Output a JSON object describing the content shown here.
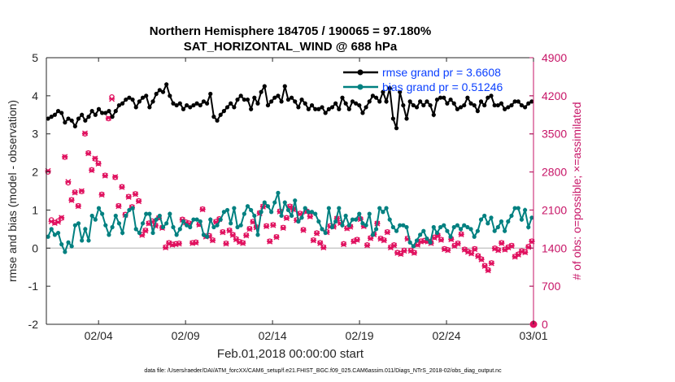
{
  "chart_data": {
    "type": "line",
    "title_line1": "Northern Hemisphere 184705 / 190065 = 97.180%",
    "title_line2": "SAT_HORIZONTAL_WIND @ 688 hPa",
    "xlabel": "Feb.01,2018 00:00:00 start",
    "ylabel_left": "rmse and bias (model - observation)",
    "ylabel_right": "# of obs: o=possible; ×=assimilated",
    "footnote": "data file: /Users/raeder/DAI/ATM_forcXX/CAM6_setup/f.e21.FHIST_BGC.f09_025.CAM6assim.011/Diags_NTrS_2018-02/obs_diag_output.nc",
    "x_range": [
      0,
      28
    ],
    "x_ticks": [
      {
        "value": 3,
        "label": "02/04"
      },
      {
        "value": 8,
        "label": "02/09"
      },
      {
        "value": 13,
        "label": "02/14"
      },
      {
        "value": 18,
        "label": "02/19"
      },
      {
        "value": 23,
        "label": "02/24"
      },
      {
        "value": 28,
        "label": "03/01"
      }
    ],
    "ylim_left": [
      -2,
      5
    ],
    "yticks_left": [
      "-2",
      "-1",
      "0",
      "1",
      "2",
      "3",
      "4",
      "5"
    ],
    "ylim_right": [
      0,
      4900
    ],
    "yticks_right": [
      "0",
      "700",
      "1400",
      "2100",
      "2800",
      "3500",
      "4200",
      "4900"
    ],
    "legend": {
      "location": "top-right",
      "entries": [
        "rmse grand pr = 3.6608",
        "bias grand pr = 0.51246"
      ]
    },
    "colors": {
      "rmse": "#000000",
      "bias": "#008080",
      "obs": "#e0115f",
      "right_axis": "#c71567",
      "legend_text": "#0a3fff",
      "zero_line": "#bfbfbf"
    },
    "series": [
      {
        "name": "rmse",
        "axis": "left",
        "values": [
          3.4,
          3.45,
          3.5,
          3.6,
          3.55,
          3.3,
          3.4,
          3.35,
          3.2,
          3.4,
          3.5,
          3.35,
          3.45,
          3.6,
          3.5,
          3.65,
          3.55,
          3.55,
          3.6,
          3.45,
          3.6,
          3.75,
          3.8,
          3.9,
          3.95,
          3.9,
          3.7,
          3.85,
          3.95,
          4.0,
          3.7,
          3.85,
          4.05,
          4.15,
          4.1,
          4.3,
          4.0,
          3.8,
          3.75,
          3.8,
          3.65,
          3.75,
          3.7,
          3.75,
          3.8,
          3.75,
          3.85,
          3.8,
          4.05,
          3.45,
          3.35,
          3.5,
          3.6,
          3.7,
          3.8,
          3.7,
          3.9,
          4.0,
          3.9,
          3.9,
          3.65,
          3.95,
          3.8,
          4.1,
          4.25,
          3.75,
          3.85,
          3.95,
          4.0,
          3.85,
          4.25,
          3.9,
          3.95,
          3.85,
          3.7,
          3.9,
          3.8,
          3.65,
          3.75,
          3.65,
          3.65,
          3.7,
          3.55,
          3.65,
          3.7,
          3.8,
          3.65,
          3.95,
          3.8,
          3.65,
          3.85,
          3.8,
          3.75,
          3.55,
          3.7,
          3.85,
          4.0,
          3.95,
          3.85,
          4.1,
          3.85,
          4.2,
          3.4,
          3.15,
          4.1,
          3.75,
          3.4,
          3.85,
          3.75,
          3.7,
          3.85,
          3.75,
          3.85,
          3.75,
          3.5,
          3.9,
          3.95,
          3.95,
          3.8,
          3.9,
          3.8,
          3.65,
          3.7,
          3.75,
          3.95,
          3.8,
          3.75,
          3.6,
          3.85,
          3.75,
          3.95,
          4.0,
          3.75,
          3.75,
          3.8,
          3.65,
          3.7,
          3.75,
          3.85,
          3.85,
          3.75,
          3.7,
          3.8,
          3.85
        ]
      },
      {
        "name": "bias",
        "axis": "left",
        "values": [
          0.3,
          0.5,
          0.35,
          0.4,
          0.1,
          -0.1,
          0.15,
          0.05,
          0.6,
          0.65,
          0.2,
          0.5,
          0.2,
          0.85,
          0.75,
          1.05,
          0.9,
          0.6,
          0.35,
          0.55,
          0.85,
          0.65,
          0.4,
          0.85,
          1.0,
          1.05,
          0.5,
          0.4,
          0.65,
          0.9,
          0.9,
          0.4,
          0.75,
          0.85,
          0.55,
          0.65,
          0.9,
          0.55,
          0.35,
          0.5,
          0.7,
          0.6,
          0.55,
          0.75,
          0.75,
          0.7,
          0.35,
          0.3,
          0.75,
          0.55,
          0.6,
          0.75,
          0.95,
          1.0,
          0.65,
          1.05,
          0.55,
          0.6,
          0.9,
          1.1,
          1.0,
          0.85,
          0.35,
          0.95,
          1.2,
          1.1,
          0.95,
          1.2,
          1.45,
          0.85,
          1.2,
          1.0,
          0.85,
          1.25,
          0.7,
          0.8,
          1.05,
          0.95,
          0.95,
          0.9,
          0.7,
          0.5,
          0.4,
          1.05,
          0.55,
          0.7,
          1.05,
          0.6,
          0.85,
          0.6,
          0.75,
          0.75,
          0.9,
          0.65,
          0.6,
          0.9,
          0.35,
          0.5,
          1.05,
          0.95,
          1.05,
          0.75,
          0.55,
          0.45,
          0.6,
          0.6,
          0.55,
          0.15,
          0.05,
          0.2,
          0.35,
          0.45,
          0.25,
          0.15,
          0.55,
          0.4,
          0.55,
          0.6,
          0.45,
          0.3,
          0.55,
          0.6,
          0.5,
          0.6,
          0.55,
          0.5,
          0.3,
          0.45,
          0.75,
          0.85,
          0.65,
          0.8,
          0.45,
          0.55,
          0.7,
          0.45,
          0.7,
          0.85,
          1.05,
          1.05,
          0.75,
          1.0,
          0.55,
          0.8
        ]
      },
      {
        "name": "obs possible",
        "axis": "right",
        "values": [
          2800,
          1920,
          1870,
          1900,
          1950,
          3070,
          2600,
          2290,
          2430,
          2180,
          2440,
          3500,
          3150,
          2840,
          3040,
          2960,
          2390,
          2740,
          3780,
          4180,
          2700,
          2180,
          2530,
          2020,
          2350,
          2160,
          2400,
          2270,
          1650,
          1730,
          1860,
          1900,
          1820,
          1960,
          1780,
          1420,
          1500,
          1470,
          1480,
          1490,
          1930,
          1880,
          1860,
          1500,
          1510,
          1840,
          2120,
          1620,
          1630,
          1550,
          1890,
          1940,
          1700,
          1490,
          1730,
          1650,
          1570,
          1520,
          1500,
          1640,
          1760,
          1890,
          1790,
          2050,
          2170,
          1810,
          1530,
          1830,
          1610,
          2080,
          1780,
          1960,
          2170,
          2120,
          1920,
          2040,
          1740,
          2080,
          1990,
          1550,
          1680,
          1500,
          1420,
          1700,
          1810,
          1800,
          1950,
          1870,
          1480,
          1770,
          1800,
          1530,
          1560,
          1940,
          1810,
          1460,
          1590,
          1660,
          1860,
          1580,
          1550,
          1700,
          1420,
          1460,
          1320,
          1300,
          1360,
          1580,
          1360,
          1320,
          1470,
          1530,
          1540,
          1530,
          1500,
          1600,
          1640,
          1560,
          1390,
          1370,
          1570,
          1450,
          1490,
          1660,
          1380,
          1340,
          1310,
          1390,
          1260,
          1200,
          1080,
          1000,
          1130,
          1400,
          1370,
          1500,
          1380,
          1420,
          1450,
          1250,
          1290,
          1350,
          1330,
          1430,
          1530
        ]
      },
      {
        "name": "obs assimilated",
        "axis": "right",
        "values": [
          2820,
          1890,
          1860,
          1880,
          1960,
          3080,
          2620,
          2280,
          2420,
          2170,
          2450,
          3510,
          3140,
          2830,
          3050,
          2950,
          2380,
          2730,
          3790,
          4140,
          2710,
          2170,
          2520,
          2010,
          2340,
          2150,
          2390,
          2260,
          1640,
          1720,
          1850,
          1890,
          1810,
          1950,
          1770,
          1410,
          1490,
          1460,
          1470,
          1480,
          1920,
          1870,
          1850,
          1490,
          1500,
          1830,
          2110,
          1610,
          1620,
          1540,
          1880,
          1930,
          1690,
          1480,
          1720,
          1640,
          1560,
          1510,
          1490,
          1630,
          1750,
          1880,
          1780,
          2040,
          2160,
          1800,
          1520,
          1820,
          1600,
          2070,
          1770,
          1950,
          2160,
          2110,
          1910,
          2030,
          1730,
          2070,
          1980,
          1540,
          1670,
          1490,
          1410,
          1690,
          1800,
          1790,
          1940,
          1860,
          1470,
          1760,
          1790,
          1520,
          1550,
          1930,
          1800,
          1450,
          1580,
          1650,
          1850,
          1570,
          1540,
          1690,
          1410,
          1450,
          1310,
          1290,
          1350,
          1570,
          1350,
          1310,
          1460,
          1520,
          1530,
          1520,
          1490,
          1590,
          1630,
          1550,
          1380,
          1360,
          1560,
          1440,
          1480,
          1650,
          1370,
          1330,
          1300,
          1380,
          1250,
          1190,
          1070,
          990,
          1120,
          1390,
          1360,
          1490,
          1370,
          1410,
          1440,
          1240,
          1280,
          1340,
          1320,
          1420,
          1520
        ]
      }
    ]
  }
}
